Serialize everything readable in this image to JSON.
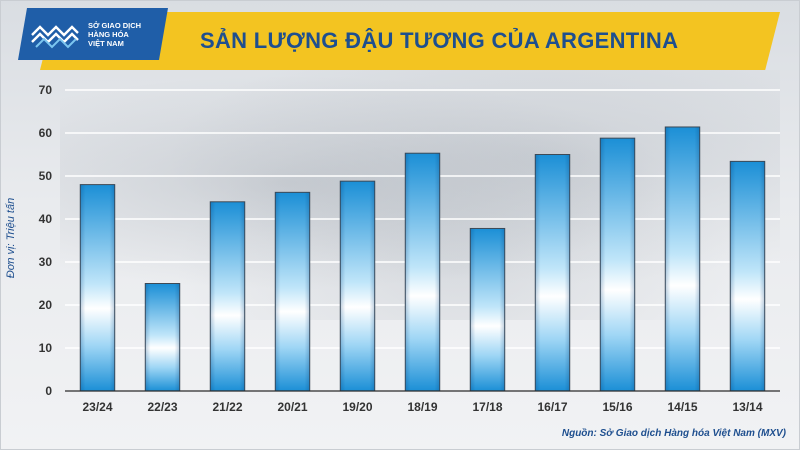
{
  "logo": {
    "line1": "SỞ GIAO DỊCH",
    "line2": "HÀNG HÓA",
    "line3": "VIỆT NAM",
    "icon": "mxv-logo-icon"
  },
  "colors": {
    "banner": "#f3c421",
    "title": "#1e4f8f",
    "bar_edge": "#1b8fd6",
    "bar_center": "#ffffff",
    "logo_bg": "#1f5ea8"
  },
  "source_note": "Nguồn: Sở Giao dịch Hàng hóa Việt Nam (MXV)",
  "chart_data": {
    "type": "bar",
    "title": "SẢN LƯỢNG ĐẬU TƯƠNG CỦA ARGENTINA",
    "xlabel": "",
    "ylabel": "Đơn vị: Triệu tấn",
    "categories": [
      "23/24",
      "22/23",
      "21/22",
      "20/21",
      "19/20",
      "18/19",
      "17/18",
      "16/17",
      "15/16",
      "14/15",
      "13/14"
    ],
    "values": [
      48.0,
      25.0,
      44.0,
      46.2,
      48.8,
      55.3,
      37.8,
      55.0,
      58.8,
      61.4,
      53.4
    ],
    "ylim": [
      0,
      70
    ],
    "yticks": [
      0,
      10,
      20,
      30,
      40,
      50,
      60,
      70
    ],
    "grid": true,
    "legend": "none"
  }
}
